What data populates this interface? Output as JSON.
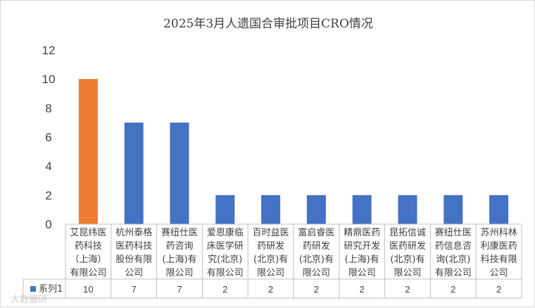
{
  "chart_data": {
    "type": "bar",
    "title": "2025年3月人遗国合审批项目CRO情况",
    "categories": [
      [
        "艾昆纬医",
        "药科技",
        "（上海）",
        "有限公司"
      ],
      [
        "杭州泰格",
        "医药科技",
        "股份有限",
        "公司"
      ],
      [
        "赛纽仕医",
        "药咨询",
        "(上海)有",
        "限公司"
      ],
      [
        "爱恩康临",
        "床医学研",
        "究(北京)",
        "有限公司"
      ],
      [
        "百时益医",
        "药研发",
        "(北京)有",
        "限公司"
      ],
      [
        "富启睿医",
        "药研发",
        "(北京)有",
        "限公司"
      ],
      [
        "精鼎医药",
        "研究开发",
        "(上海)有",
        "限公司"
      ],
      [
        "昆拓信诚",
        "医药研发",
        "(北京)有",
        "限公司"
      ],
      [
        "赛纽仕医",
        "药信息咨",
        "询(北京)",
        "有限公司"
      ],
      [
        "苏州科林",
        "利康医药",
        "科技有限",
        "公司"
      ]
    ],
    "series": [
      {
        "name": "系列1",
        "values": [
          10,
          7,
          7,
          2,
          2,
          2,
          2,
          2,
          2,
          2
        ],
        "color": "#4472C4",
        "highlight_color": "#ED7D31",
        "highlight_index": 0
      }
    ],
    "ylim": [
      0,
      12
    ],
    "yticks": [
      0,
      2,
      4,
      6,
      8,
      10,
      12
    ],
    "grid": false,
    "legend": "data-table-left",
    "xlabel": "",
    "ylabel": ""
  },
  "watermark": "大数据研"
}
